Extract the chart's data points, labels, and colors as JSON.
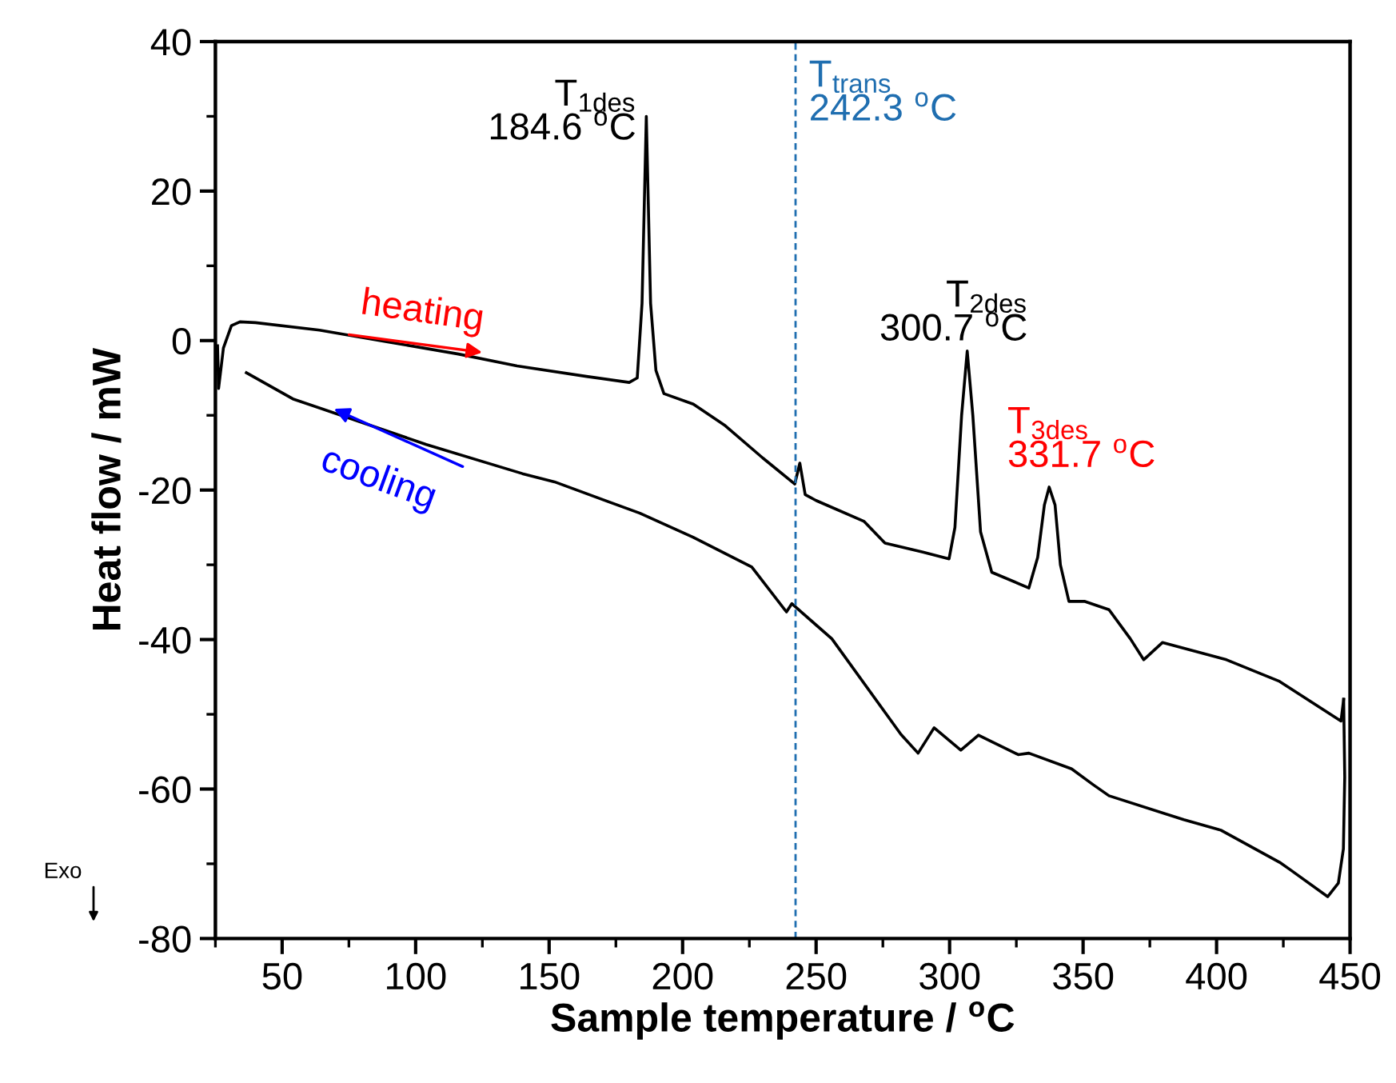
{
  "chart_data": {
    "type": "line",
    "xlabel": "Sample temperature / $^{o}$C",
    "ylabel": "Heat flow / mW",
    "xlim": [
      25,
      450
    ],
    "xticks": [
      50,
      100,
      150,
      200,
      250,
      300,
      350,
      400,
      450
    ],
    "ylim": [
      -80,
      40
    ],
    "yticks": [
      -80,
      -60,
      -40,
      -20,
      0,
      20,
      40
    ],
    "grid": false,
    "legend": false,
    "marker": "none",
    "line_style": "solid",
    "series": [
      {
        "color": "#000000",
        "x": [
          25.8,
          26.2,
          28,
          31,
          34.2,
          40,
          64,
          90,
          116,
          138,
          164,
          180,
          183,
          184.8,
          186.4,
          188,
          190,
          193,
          204,
          216,
          230,
          242,
          243.9,
          245.9,
          250,
          268,
          275.8,
          290,
          299.8,
          302,
          304.5,
          306.6,
          308.7,
          311.6,
          315.8,
          329.7,
          333,
          335.5,
          337.3,
          339.5,
          341.5,
          344.7,
          350.7,
          359.7,
          367.7,
          372.7,
          379.7,
          403.7,
          423.6,
          446.6,
          447.6
        ],
        "values": [
          -0.7,
          -6.4,
          -1,
          2,
          2.5,
          2.4,
          1.4,
          -0.2,
          -1.8,
          -3.4,
          -4.8,
          -5.6,
          -5,
          5,
          30.0,
          5,
          -4,
          -7.1,
          -8.5,
          -11.4,
          -15.7,
          -19.2,
          -16.4,
          -20.6,
          -21.4,
          -24.2,
          -27.1,
          -28.3,
          -29.2,
          -25,
          -10,
          -1.4,
          -10,
          -25.6,
          -31.0,
          -33.1,
          -29,
          -22,
          -19.6,
          -22,
          -30,
          -34.9,
          -34.9,
          -36.0,
          -39.9,
          -42.7,
          -40.4,
          -42.7,
          -45.6,
          -50.9,
          -48.0
        ]
      },
      {
        "color": "#000000",
        "x": [
          447.6,
          448,
          447.5,
          445.6,
          441.6,
          427.6,
          423.6,
          401.6,
          387.7,
          359.7,
          353.7,
          345.7,
          329.7,
          325.7,
          310.8,
          304.2,
          294.2,
          288.2,
          281.8,
          255.9,
          240.9,
          238.9,
          225.9,
          203.9,
          184,
          152,
          140,
          104,
          54,
          36.6
        ],
        "values": [
          -48.0,
          -58.4,
          -68,
          -72.6,
          -74.4,
          -70.8,
          -69.8,
          -65.5,
          -64.1,
          -60.9,
          -59.4,
          -57.3,
          -55.2,
          -55.4,
          -52.8,
          -54.8,
          -51.8,
          -55.2,
          -52.7,
          -39.9,
          -35.2,
          -36.3,
          -30.3,
          -26.3,
          -23.1,
          -18.9,
          -17.8,
          -13.9,
          -7.8,
          -4.3
        ]
      }
    ],
    "ref_lines": [
      {
        "axis": "x",
        "value": 242.3,
        "label": "T$_{trans}$\n242.3 $^{o}$C",
        "color": "#1f6eb0",
        "line_style": "dashed"
      }
    ],
    "annotations": [
      "T$_{1des}$\n184.6 $^{o}$C",
      "T$_{2des}$\n300.7 $^{o}$C",
      "T$_{3des}$\n331.7 $^{o}$C",
      {
        "text": "heating",
        "x": 100,
        "y": -0.4
      },
      {
        "text": "cooling",
        "x": 93.5,
        "y": -13
      },
      "Exo"
    ]
  }
}
